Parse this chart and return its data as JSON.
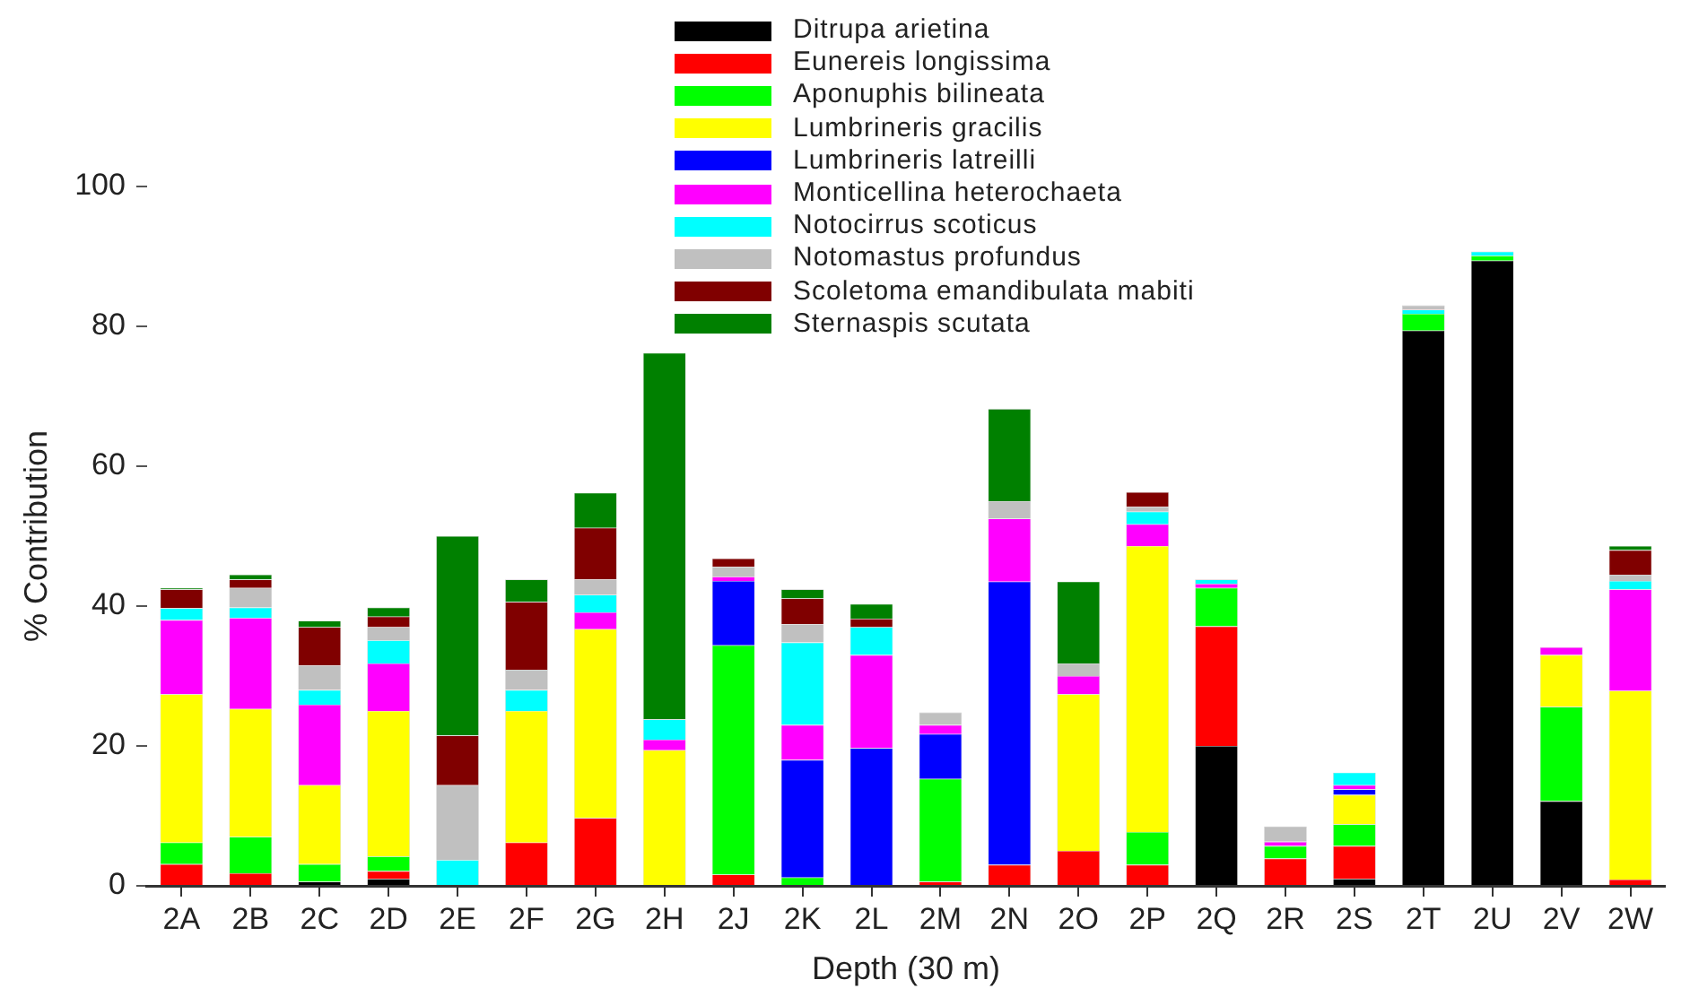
{
  "chart_data": {
    "type": "bar",
    "stacked": true,
    "xlabel": "Depth (30 m)",
    "ylabel": "% Contribution",
    "categories": [
      "2A",
      "2B",
      "2C",
      "2D",
      "2E",
      "2F",
      "2G",
      "2H",
      "2J",
      "2K",
      "2L",
      "2M",
      "2N",
      "2O",
      "2P",
      "2Q",
      "2R",
      "2S",
      "2T",
      "2U",
      "2V",
      "2W"
    ],
    "ylim": [
      0,
      100
    ],
    "yticks": [
      0,
      20,
      40,
      60,
      80,
      100
    ],
    "grid": false,
    "legend": "top",
    "series": [
      {
        "name": "Ditrupa arietina",
        "color": "#000000",
        "values": [
          0,
          0,
          0.6,
          1.0,
          0,
          0,
          0,
          0,
          0,
          0,
          0,
          0,
          0,
          0,
          0,
          20.0,
          0,
          1.0,
          79.4,
          89.4,
          12.1,
          0
        ]
      },
      {
        "name": "Eunereis longissima",
        "color": "#ff0000",
        "values": [
          3.1,
          1.8,
          0,
          1.1,
          0,
          6.2,
          9.7,
          0,
          1.6,
          0,
          0,
          0.6,
          3.0,
          5.0,
          3.0,
          17.1,
          3.9,
          4.7,
          0,
          0,
          0,
          0.9
        ]
      },
      {
        "name": "Aponuphis bilineata",
        "color": "#00ff00",
        "values": [
          3.1,
          5.2,
          2.5,
          2.1,
          0,
          0,
          0,
          0,
          32.8,
          1.2,
          0,
          14.7,
          0,
          0,
          4.7,
          5.5,
          1.8,
          3.1,
          2.4,
          0.7,
          13.5,
          0
        ]
      },
      {
        "name": "Lumbrineris gracilis",
        "color": "#ffff00",
        "values": [
          21.2,
          18.3,
          11.3,
          20.8,
          0,
          18.8,
          27.0,
          19.4,
          0,
          0,
          0,
          0,
          0,
          22.4,
          40.9,
          0,
          0,
          4.2,
          0,
          0,
          7.4,
          27.0
        ]
      },
      {
        "name": "Lumbrineris latreilli",
        "color": "#0000ff",
        "values": [
          0,
          0,
          0,
          0,
          0,
          0,
          0,
          0,
          9.2,
          16.8,
          19.7,
          6.4,
          40.5,
          0,
          0,
          0,
          0,
          0.8,
          0,
          0,
          0,
          0
        ]
      },
      {
        "name": "Monticellina heterochaeta",
        "color": "#ff00ff",
        "values": [
          10.6,
          13.0,
          11.5,
          6.8,
          0,
          0,
          2.4,
          1.5,
          0.6,
          5.0,
          13.3,
          1.3,
          9.0,
          2.6,
          3.1,
          0.6,
          0.6,
          0.6,
          0,
          0,
          1.1,
          14.5
        ]
      },
      {
        "name": "Notocirrus scoticus",
        "color": "#00ffff",
        "values": [
          1.7,
          1.5,
          2.1,
          3.3,
          3.7,
          3.0,
          2.5,
          2.9,
          0,
          11.8,
          4.0,
          0,
          0,
          0,
          1.8,
          0.6,
          0,
          1.8,
          0.6,
          0.6,
          0,
          1.2
        ]
      },
      {
        "name": "Notomastus profundus",
        "color": "#c0c0c0",
        "values": [
          0,
          2.8,
          3.5,
          1.9,
          10.7,
          2.9,
          2.2,
          0,
          1.4,
          2.6,
          0,
          1.8,
          2.5,
          1.8,
          0.7,
          0,
          2.2,
          0,
          0.6,
          0,
          0,
          0.9
        ]
      },
      {
        "name": "Scoletoma emandibulata mabiti",
        "color": "#800000",
        "values": [
          2.7,
          1.2,
          5.5,
          1.5,
          7.1,
          9.7,
          7.4,
          0,
          1.2,
          3.7,
          1.2,
          0,
          0,
          0,
          2.1,
          0,
          0,
          0,
          0,
          0,
          0,
          3.5
        ]
      },
      {
        "name": "Sternaspis scutata",
        "color": "#008000",
        "values": [
          0.2,
          0.7,
          0.9,
          1.3,
          28.5,
          3.2,
          5.0,
          52.4,
          0,
          1.3,
          2.1,
          0,
          13.2,
          11.7,
          0,
          0,
          0,
          0,
          0,
          0,
          0,
          0.6
        ]
      }
    ]
  }
}
